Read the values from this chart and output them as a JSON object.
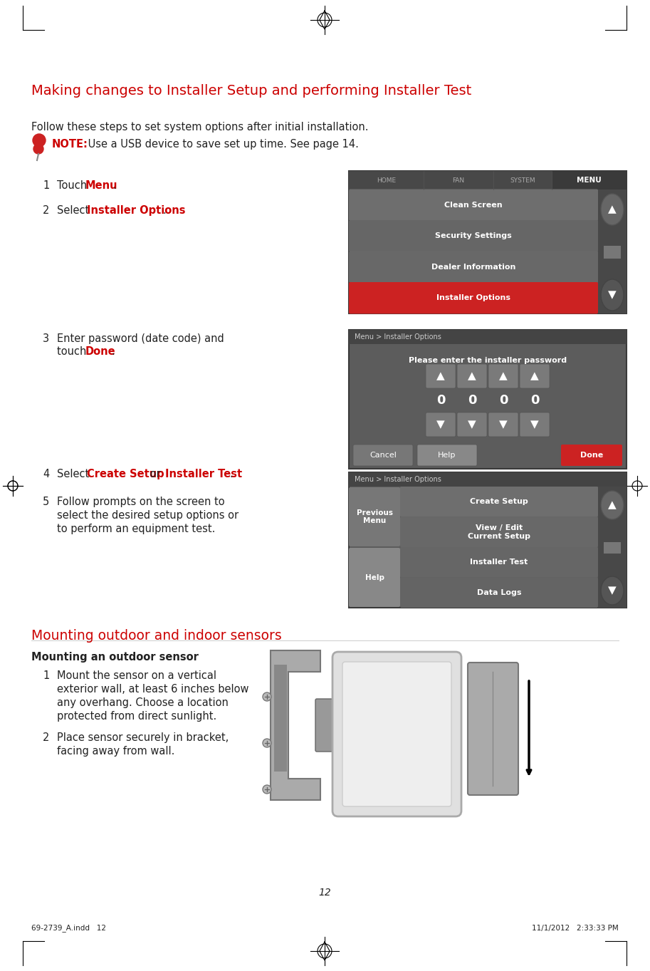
{
  "bg_color": "#ffffff",
  "title": "Making changes to Installer Setup and performing Installer Test",
  "title_color": "#cc0000",
  "body_color": "#222222",
  "red_color": "#cc0000",
  "note_text_bold": "NOTE:",
  "note_text_rest": " Use a USB device to save set up time. See page 14.",
  "follow_text": "Follow these steps to set system options after initial installation.",
  "section2_title": "Mounting outdoor and indoor sensors",
  "section2_color": "#cc0000",
  "subsection_title": "Mounting an outdoor sensor",
  "page_number": "12",
  "footer_left": "69-2739_A.indd   12",
  "footer_right": "11/1/2012   2:33:33 PM",
  "screen1_items": [
    "Clean Screen",
    "Security Settings",
    "Dealer Information",
    "Installer Options"
  ],
  "screen1_tabs": [
    "HOME",
    "FAN",
    "SYSTEM",
    "MENU"
  ],
  "screen2_title": "Menu > Installer Options",
  "screen2_prompt": "Please enter the installer password",
  "screen3_title": "Menu > Installer Options",
  "screen3_left": [
    "Previous\nMenu",
    "Help"
  ],
  "screen3_right": [
    "Create Setup",
    "View / Edit\nCurrent Setup",
    "Installer Test",
    "Data Logs"
  ]
}
